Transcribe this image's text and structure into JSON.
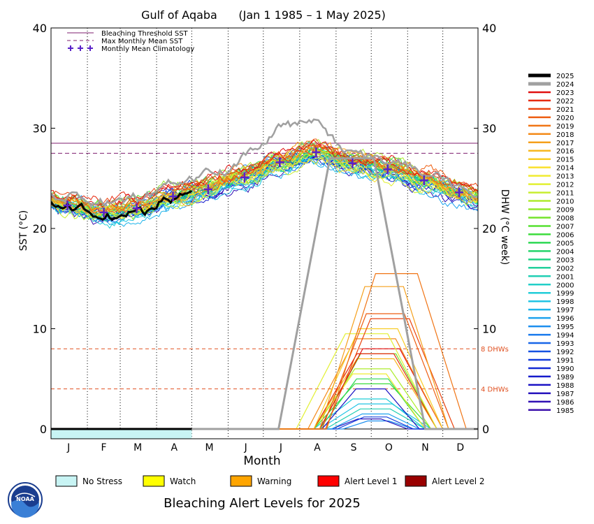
{
  "chart_data": {
    "type": "line",
    "title": "Gulf of Aqaba      (Jan 1 1985 – 1 May 2025)",
    "xlabel": "Month",
    "ylabel_left": "SST (°C)",
    "ylabel_right": "DHW (°C week)",
    "months": [
      "J",
      "F",
      "M",
      "A",
      "M",
      "J",
      "J",
      "A",
      "S",
      "O",
      "N",
      "D"
    ],
    "y_ticks": [
      0,
      10,
      20,
      30,
      40
    ],
    "ylim": [
      -1,
      40
    ],
    "xlim": [
      1,
      365
    ],
    "grid": "dotted vertical month boundaries",
    "legend_placement": "top-left",
    "top_legend": [
      {
        "label": "Bleaching Threshold SST",
        "style": "solid",
        "color": "#7f1f6f"
      },
      {
        "label": "Max Monthly Mean SST",
        "style": "dashed",
        "color": "#7f1f6f"
      },
      {
        "label": "Monthly Mean Climatology",
        "style": "cross",
        "color": "#5a22c8"
      }
    ],
    "bleaching_threshold_sst": 28.5,
    "max_monthly_mean_sst": 27.5,
    "dhw_reference_lines": [
      {
        "value": 8,
        "label": "8 DHWs"
      },
      {
        "value": 4,
        "label": "4 DHWs"
      }
    ],
    "monthly_mean_climatology": {
      "x": [
        15,
        46,
        74,
        105,
        135,
        166,
        196,
        227,
        258,
        288,
        319,
        349
      ],
      "y": [
        22.3,
        21.6,
        22.0,
        23.2,
        23.9,
        25.1,
        26.6,
        27.6,
        26.5,
        25.9,
        24.8,
        23.6
      ]
    },
    "series": [
      {
        "name": "2025",
        "color": "#000000",
        "width": 4
      },
      {
        "name": "2024",
        "color": "#a0a0a0",
        "width": 4
      },
      {
        "name": "2023",
        "color": "#e01010"
      },
      {
        "name": "2022",
        "color": "#e62a10"
      },
      {
        "name": "2021",
        "color": "#ea4410"
      },
      {
        "name": "2020",
        "color": "#ee5e12"
      },
      {
        "name": "2019",
        "color": "#f07414"
      },
      {
        "name": "2018",
        "color": "#f38a18"
      },
      {
        "name": "2017",
        "color": "#f5a01c"
      },
      {
        "name": "2016",
        "color": "#f7b820"
      },
      {
        "name": "2015",
        "color": "#f8cc26"
      },
      {
        "name": "2014",
        "color": "#fae02c"
      },
      {
        "name": "2013",
        "color": "#f0ec30"
      },
      {
        "name": "2012",
        "color": "#e2f032"
      },
      {
        "name": "2011",
        "color": "#c8ee30"
      },
      {
        "name": "2010",
        "color": "#aeec2e"
      },
      {
        "name": "2009",
        "color": "#92e82c"
      },
      {
        "name": "2008",
        "color": "#74e42a"
      },
      {
        "name": "2007",
        "color": "#56e030"
      },
      {
        "name": "2006",
        "color": "#3cdc3c"
      },
      {
        "name": "2005",
        "color": "#2cd852"
      },
      {
        "name": "2004",
        "color": "#24d46a"
      },
      {
        "name": "2003",
        "color": "#22d284"
      },
      {
        "name": "2002",
        "color": "#22d09c"
      },
      {
        "name": "2001",
        "color": "#22cfb4"
      },
      {
        "name": "2000",
        "color": "#22cfc8"
      },
      {
        "name": "1999",
        "color": "#22cdd8"
      },
      {
        "name": "1998",
        "color": "#22c4e4"
      },
      {
        "name": "1997",
        "color": "#20b4ea"
      },
      {
        "name": "1996",
        "color": "#1ea2ee"
      },
      {
        "name": "1995",
        "color": "#1c8eee"
      },
      {
        "name": "1994",
        "color": "#1a7aec"
      },
      {
        "name": "1993",
        "color": "#1866e8"
      },
      {
        "name": "1992",
        "color": "#1652e2"
      },
      {
        "name": "1991",
        "color": "#143edc"
      },
      {
        "name": "1990",
        "color": "#142cd4"
      },
      {
        "name": "1989",
        "color": "#161ccc"
      },
      {
        "name": "1988",
        "color": "#1a12c4"
      },
      {
        "name": "1987",
        "color": "#2410bc"
      },
      {
        "name": "1986",
        "color": "#3010b4"
      },
      {
        "name": "1985",
        "color": "#3c12ac"
      }
    ],
    "dhw_peaks": [
      {
        "year": "2024",
        "peak": 27.0,
        "start": 195,
        "end": 320
      },
      {
        "year": "2019",
        "peak": 15.5,
        "start": 236,
        "end": 355
      },
      {
        "year": "2017",
        "peak": 14.2,
        "start": 230,
        "end": 340
      },
      {
        "year": "2020",
        "peak": 11.5,
        "start": 232,
        "end": 340
      },
      {
        "year": "2021",
        "peak": 11.0,
        "start": 235,
        "end": 345
      },
      {
        "year": "2015",
        "peak": 10.0,
        "start": 225,
        "end": 335
      },
      {
        "year": "2012",
        "peak": 9.5,
        "start": 210,
        "end": 330
      },
      {
        "year": "2018",
        "peak": 9.0,
        "start": 220,
        "end": 335
      },
      {
        "year": "2023",
        "peak": 8.0,
        "start": 230,
        "end": 335
      },
      {
        "year": "2022",
        "peak": 7.5,
        "start": 225,
        "end": 330
      },
      {
        "year": "2008",
        "peak": 7.5,
        "start": 230,
        "end": 330
      },
      {
        "year": "2016",
        "peak": 7.0,
        "start": 225,
        "end": 330
      },
      {
        "year": "2010",
        "peak": 6.0,
        "start": 225,
        "end": 325
      },
      {
        "year": "2013",
        "peak": 5.5,
        "start": 225,
        "end": 320
      },
      {
        "year": "2005",
        "peak": 5.0,
        "start": 230,
        "end": 320
      },
      {
        "year": "2006",
        "peak": 4.5,
        "start": 225,
        "end": 325
      },
      {
        "year": "1988",
        "peak": 4.0,
        "start": 232,
        "end": 315
      },
      {
        "year": "1999",
        "peak": 3.0,
        "start": 225,
        "end": 320
      },
      {
        "year": "1998",
        "peak": 2.5,
        "start": 230,
        "end": 325
      },
      {
        "year": "2001",
        "peak": 2.0,
        "start": 235,
        "end": 320
      },
      {
        "year": "1996",
        "peak": 1.5,
        "start": 240,
        "end": 315
      },
      {
        "year": "1991",
        "peak": 1.2,
        "start": 245,
        "end": 310
      },
      {
        "year": "1987",
        "peak": 1.0,
        "start": 240,
        "end": 305
      },
      {
        "year": "1995",
        "peak": 0.8,
        "start": 250,
        "end": 310
      }
    ],
    "alert_legend_title": "Bleaching Alert Levels for 2025",
    "alert_levels": [
      {
        "label": "No Stress",
        "color": "#c8f4f4"
      },
      {
        "label": "Watch",
        "color": "#ffff00"
      },
      {
        "label": "Warning",
        "color": "#ffa500"
      },
      {
        "label": "Alert Level 1",
        "color": "#ff0000"
      },
      {
        "label": "Alert Level 2",
        "color": "#990000"
      }
    ],
    "alert_bar_2025": {
      "level": "No Stress",
      "start": 1,
      "end": 121
    },
    "logo_text": "NOAA"
  }
}
